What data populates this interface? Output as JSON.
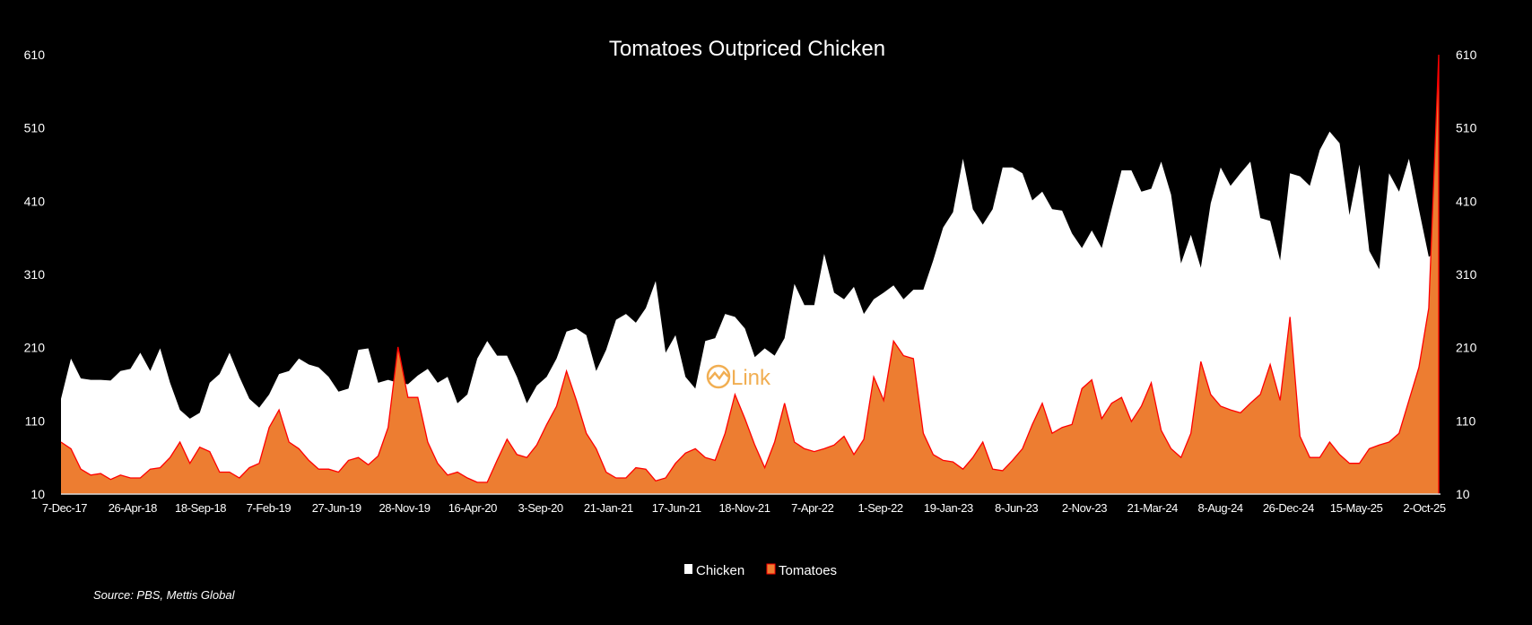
{
  "chart_data": {
    "type": "area",
    "title": "Tomatoes Outpriced Chicken",
    "xlabel": "",
    "ylabel": "",
    "ylim": [
      10,
      610
    ],
    "y_ticks": [
      "10",
      "110",
      "210",
      "310",
      "410",
      "510",
      "610"
    ],
    "y2_ticks": [
      "10",
      "110",
      "210",
      "310",
      "410",
      "510",
      "610"
    ],
    "x_tick_labels": [
      "7-Dec-17",
      "26-Apr-18",
      "18-Sep-18",
      "7-Feb-19",
      "27-Jun-19",
      "28-Nov-19",
      "16-Apr-20",
      "3-Sep-20",
      "21-Jan-21",
      "17-Jun-21",
      "18-Nov-21",
      "7-Apr-22",
      "1-Sep-22",
      "19-Jan-23",
      "8-Jun-23",
      "2-Nov-23",
      "21-Mar-24",
      "8-Aug-24",
      "26-Dec-24",
      "15-May-25",
      "2-Oct-25"
    ],
    "x_tick_index": [
      0,
      7,
      15,
      22,
      29,
      36,
      44,
      51,
      58,
      65,
      73,
      80,
      87,
      94,
      102,
      109,
      116,
      123,
      131,
      138,
      139
    ],
    "legend_position": "bottom",
    "grid": false,
    "series": [
      {
        "name": "Chicken",
        "color": "#FFFFFF",
        "values": [
          140,
          195,
          168,
          166,
          166,
          165,
          178,
          181,
          203,
          178,
          209,
          162,
          125,
          113,
          121,
          162,
          174,
          203,
          170,
          140,
          128,
          146,
          174,
          178,
          195,
          187,
          183,
          170,
          150,
          154,
          207,
          209,
          162,
          166,
          162,
          160,
          172,
          181,
          162,
          170,
          134,
          146,
          195,
          219,
          199,
          199,
          170,
          134,
          158,
          170,
          195,
          232,
          236,
          227,
          178,
          207,
          248,
          256,
          244,
          264,
          301,
          203,
          227,
          170,
          154,
          219,
          223,
          256,
          252,
          236,
          197,
          209,
          199,
          223,
          297,
          268,
          268,
          338,
          285,
          276,
          293,
          256,
          276,
          285,
          295,
          276,
          289,
          289,
          329,
          374,
          395,
          468,
          399,
          378,
          399,
          456,
          456,
          448,
          411,
          423,
          399,
          397,
          366,
          346,
          370,
          346,
          399,
          452,
          452,
          423,
          427,
          464,
          419,
          325,
          364,
          319,
          407,
          456,
          431,
          448,
          464,
          387,
          383,
          329,
          448,
          444,
          431,
          480,
          505,
          489,
          391,
          460,
          342,
          317,
          448,
          423,
          468,
          399,
          334,
          342
        ]
      },
      {
        "name": "Tomatoes",
        "color": "#ED7D31",
        "line_color": "#FF0000",
        "values": [
          81,
          72,
          44,
          36,
          38,
          30,
          36,
          32,
          32,
          44,
          46,
          60,
          81,
          52,
          74,
          68,
          40,
          40,
          32,
          46,
          52,
          101,
          125,
          81,
          72,
          56,
          44,
          44,
          40,
          56,
          60,
          50,
          62,
          101,
          211,
          142,
          142,
          81,
          52,
          36,
          40,
          32,
          26,
          26,
          56,
          85,
          64,
          60,
          77,
          105,
          130,
          178,
          138,
          93,
          72,
          40,
          32,
          32,
          46,
          44,
          28,
          32,
          52,
          66,
          72,
          60,
          56,
          93,
          146,
          113,
          77,
          46,
          81,
          134,
          81,
          72,
          68,
          72,
          77,
          89,
          64,
          85,
          170,
          138,
          219,
          199,
          195,
          93,
          64,
          56,
          54,
          44,
          60,
          81,
          44,
          42,
          56,
          72,
          105,
          134,
          93,
          101,
          105,
          154,
          166,
          113,
          134,
          142,
          109,
          130,
          162,
          97,
          72,
          60,
          93,
          191,
          146,
          130,
          125,
          121,
          134,
          146,
          187,
          138,
          252,
          89,
          60,
          60,
          81,
          64,
          52,
          52,
          72,
          77,
          81,
          93,
          138,
          183,
          264,
          610
        ]
      }
    ]
  },
  "legend": {
    "chicken": "Chicken",
    "tomatoes": "Tomatoes"
  },
  "source": "Source: PBS, Mettis Global",
  "watermark": "Link",
  "colors": {
    "background": "#000000",
    "chicken": "#FFFFFF",
    "tomatoes_fill": "#ED7D31",
    "tomatoes_line": "#FF0000"
  }
}
